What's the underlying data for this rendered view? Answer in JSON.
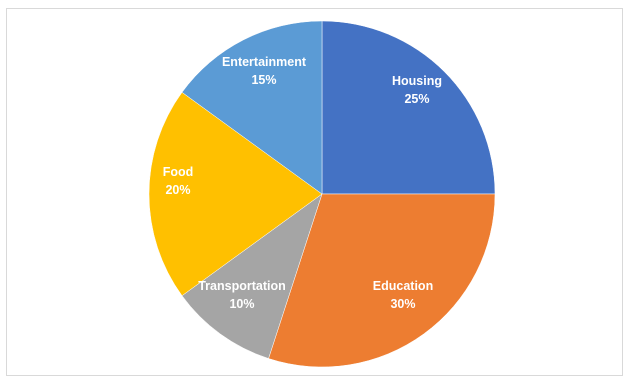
{
  "chart_data": {
    "type": "pie",
    "title": "",
    "start_angle_deg": 0,
    "direction": "clockwise",
    "slices": [
      {
        "label": "Housing",
        "value": 25,
        "display": "25%",
        "color": "#4472c4"
      },
      {
        "label": "Education",
        "value": 30,
        "display": "30%",
        "color": "#ed7d31"
      },
      {
        "label": "Transportation",
        "value": 10,
        "display": "10%",
        "color": "#a5a5a5"
      },
      {
        "label": "Food",
        "value": 20,
        "display": "20%",
        "color": "#ffc000"
      },
      {
        "label": "Entertainment",
        "value": 15,
        "display": "15%",
        "color": "#5b9bd5"
      }
    ]
  }
}
